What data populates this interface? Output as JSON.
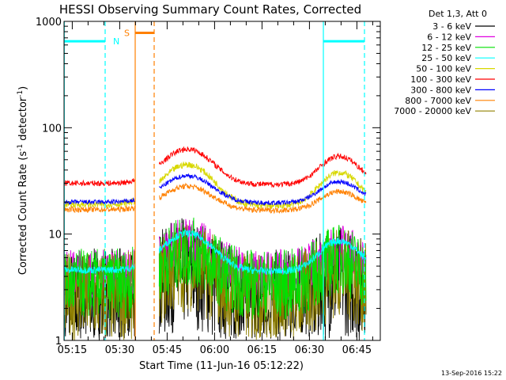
{
  "chart_data": {
    "type": "line",
    "title": "HESSI Observing Summary Count Rates, Corrected",
    "xlabel": "Start Time (11-Jun-16 05:12:22)",
    "ylabel": "Corrected Count Rate (s",
    "ylabel_sup1": "-1",
    "ylabel_mid": " detector",
    "ylabel_sup2": "-1",
    "ylabel_end": ")",
    "yscale": "log",
    "ylim": [
      1,
      1000
    ],
    "xlim_minutes_since_0512": [
      0,
      100
    ],
    "x_ticks": [
      {
        "label": "05:15",
        "m": 2.6
      },
      {
        "label": "05:30",
        "m": 17.6
      },
      {
        "label": "05:45",
        "m": 32.6
      },
      {
        "label": "06:00",
        "m": 47.6
      },
      {
        "label": "06:15",
        "m": 62.6
      },
      {
        "label": "06:30",
        "m": 77.6
      },
      {
        "label": "06:45",
        "m": 92.6
      }
    ],
    "y_ticks": [
      {
        "label": "1",
        "v": 1
      },
      {
        "label": "10",
        "v": 10
      },
      {
        "label": "100",
        "v": 100
      },
      {
        "label": "1000",
        "v": 1000
      }
    ],
    "legend_title": "Det 1,3, Att 0",
    "series": [
      {
        "name": "3 - 6 keV",
        "color": "#000000"
      },
      {
        "name": "6 - 12 keV",
        "color": "#e000e0"
      },
      {
        "name": "12 - 25 keV",
        "color": "#00e000"
      },
      {
        "name": "25 - 50 keV",
        "color": "#00ffff"
      },
      {
        "name": "50 - 100 keV",
        "color": "#d8d800"
      },
      {
        "name": "100 - 300 keV",
        "color": "#ff0000"
      },
      {
        "name": "300 - 800 keV",
        "color": "#0000ff"
      },
      {
        "name": "800 - 7000 keV",
        "color": "#ff8000"
      },
      {
        "name": "7000 - 20000 keV",
        "color": "#908000"
      }
    ],
    "markers": [
      {
        "label": "N",
        "color": "#00ffff"
      },
      {
        "label": "S",
        "color": "#ff8000"
      }
    ],
    "footer": "13-Sep-2016 15:22"
  }
}
